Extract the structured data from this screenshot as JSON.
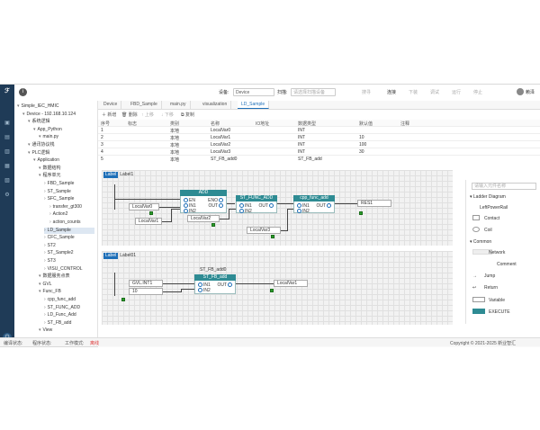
{
  "topbar": {
    "device_label": "设备:",
    "device_value": "Device",
    "scan_label": "扫描:",
    "scan_placeholder": "请选择扫描设备",
    "btn_search": "搜寻",
    "btn_connect": "连接",
    "btn_download": "下装",
    "btn_debug": "调试",
    "btn_run": "运行",
    "btn_stop": "停止",
    "user": "赖泽"
  },
  "project": {
    "nodes": [
      {
        "label": "Simple_IEC_HMIC",
        "depth": 0
      },
      {
        "label": "Device - 192.168.10.124",
        "depth": 1
      },
      {
        "label": "系统逻辑",
        "depth": 2
      },
      {
        "label": "App_Python",
        "depth": 3
      },
      {
        "label": "main.py",
        "depth": 4
      },
      {
        "label": "通讯协议栈",
        "depth": 2
      },
      {
        "label": "PLC逻辑",
        "depth": 2
      },
      {
        "label": "Application",
        "depth": 3
      },
      {
        "label": "数据结构",
        "depth": 4
      },
      {
        "label": "程序单元",
        "depth": 4
      },
      {
        "label": "FBD_Sample",
        "depth": 5
      },
      {
        "label": "ST_Sample",
        "depth": 5
      },
      {
        "label": "SFC_Sample",
        "depth": 5
      },
      {
        "label": "transfer_gt300",
        "depth": 6
      },
      {
        "label": "Action2",
        "depth": 6
      },
      {
        "label": "action_counts",
        "depth": 6
      },
      {
        "label": "LD_Sample",
        "depth": 5,
        "selected": true
      },
      {
        "label": "CFC_Sample",
        "depth": 5
      },
      {
        "label": "ST2",
        "depth": 5
      },
      {
        "label": "ST_Sample2",
        "depth": 5
      },
      {
        "label": "ST3",
        "depth": 5
      },
      {
        "label": "VISU_CONTROL",
        "depth": 5
      },
      {
        "label": "数据服务点表",
        "depth": 4
      },
      {
        "label": "GVL",
        "depth": 4
      },
      {
        "label": "Func_FB",
        "depth": 4
      },
      {
        "label": "cpp_func_add",
        "depth": 5
      },
      {
        "label": "ST_FUNC_ADD",
        "depth": 5
      },
      {
        "label": "LD_Func_Add",
        "depth": 5
      },
      {
        "label": "ST_FB_add",
        "depth": 5
      },
      {
        "label": "View",
        "depth": 4
      }
    ]
  },
  "tabs": [
    {
      "label": "Device",
      "active": false
    },
    {
      "label": "FBD_Sample",
      "active": false
    },
    {
      "label": "main.py",
      "active": false
    },
    {
      "label": "visualization",
      "active": false
    },
    {
      "label": "LD_Sample",
      "active": true
    }
  ],
  "var_toolbar": {
    "add": "新增",
    "delete": "删除",
    "up": "上移",
    "down": "下移",
    "copy": "复制"
  },
  "var_table": {
    "headers": [
      "序号",
      "标志",
      "类别",
      "名称",
      "IO地址",
      "数据类型",
      "默认值",
      "注释"
    ],
    "rows": [
      [
        "1",
        "",
        "本地",
        "LocalVar0",
        "",
        "INT",
        "",
        ""
      ],
      [
        "2",
        "",
        "本地",
        "LocalVar1",
        "",
        "INT",
        "10",
        ""
      ],
      [
        "3",
        "",
        "本地",
        "LocalVar2",
        "",
        "INT",
        "100",
        ""
      ],
      [
        "4",
        "",
        "本地",
        "LocalVar3",
        "",
        "INT",
        "30",
        ""
      ],
      [
        "5",
        "",
        "本地",
        "ST_FB_add0",
        "",
        "ST_FB_add",
        "",
        ""
      ],
      [
        "6",
        "",
        "本地",
        "RES1",
        "",
        "INT",
        "",
        ""
      ],
      [
        "7",
        "",
        "本地",
        "RES2",
        "",
        "INT",
        "",
        ""
      ],
      [
        "8",
        "",
        "本地",
        "EastVar1",
        "",
        "BOOL",
        "",
        ""
      ]
    ]
  },
  "networks": {
    "n1": {
      "badge": "Label",
      "name": "Label1",
      "add_block": {
        "title": "ADD",
        "in_pins": [
          "EN",
          "IN1",
          "IN2"
        ],
        "out_pins": [
          "ENO",
          "OUT"
        ]
      },
      "func_block": {
        "title": "ST_FUNC_ADD",
        "in_pins": [
          "IN1",
          "IN2"
        ],
        "out_pins": [
          "OUT"
        ]
      },
      "cpp_block": {
        "title": "cpp_func_add",
        "in_pins": [
          "IN1",
          "IN2"
        ],
        "out_pins": [
          "OUT"
        ]
      },
      "vars": {
        "v0": "LocalVar0",
        "v1": "LocalVar1",
        "v2": "LocalVar2",
        "v3": "LocalVar3",
        "res": "RES1"
      }
    },
    "n2": {
      "badge": "Label",
      "name": "Label01",
      "instance": "ST_FB_add0",
      "fb_block": {
        "title": "ST_FB_add",
        "in_pins": [
          "IN1",
          "IN2"
        ],
        "out_pins": [
          "OUT"
        ]
      },
      "vars": {
        "in1": "GVL.INT1",
        "const": "10",
        "out": "LocalVar1"
      }
    }
  },
  "palette": {
    "search_placeholder": "请输入元件名称",
    "group1": "Ladder Diagram",
    "items1": [
      "LeftPowerRail",
      "Contact",
      "Coil"
    ],
    "group2": "Common",
    "items2": [
      "Network",
      "Comment",
      "Jump",
      "Return",
      "Variable",
      "EXECUTE"
    ]
  },
  "bottom_tab": "消息",
  "status": {
    "compile_label": "编译状态:",
    "program_label": "程序状态:",
    "work_label": "工作模式:",
    "work_value": "离线",
    "copyright": "Copyright © 2021-2025 新业智汇"
  }
}
